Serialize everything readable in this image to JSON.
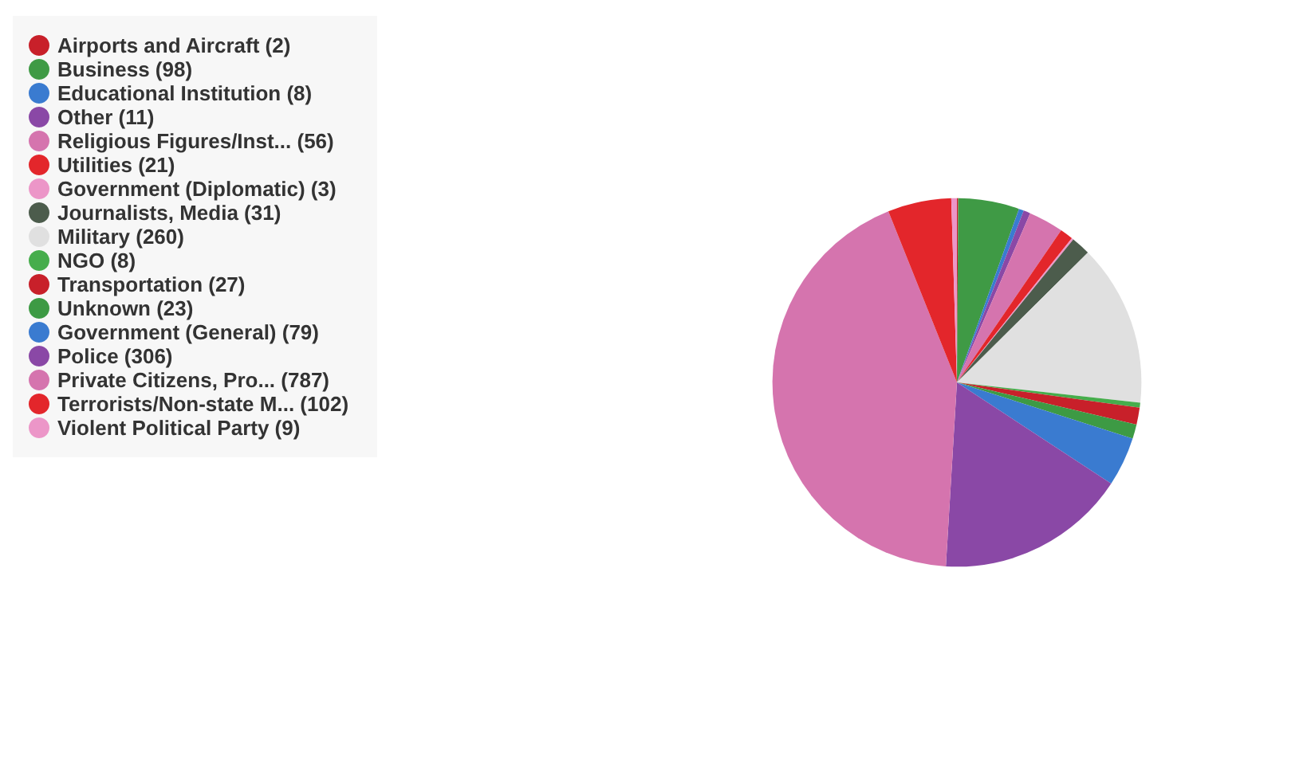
{
  "chart_data": {
    "type": "pie",
    "categories": [
      "Airports and Aircraft (2)",
      "Business (98)",
      "Educational Institution (8)",
      "Other (11)",
      "Religious Figures/Inst... (56)",
      "Utilities (21)",
      "Government (Diplomatic) (3)",
      "Journalists, Media (31)",
      "Military (260)",
      "NGO (8)",
      "Transportation (27)",
      "Unknown (23)",
      "Government (General) (79)",
      "Police (306)",
      "Private Citizens, Pro... (787)",
      "Terrorists/Non-state M... (102)",
      "Violent Political Party (9)"
    ],
    "values": [
      2,
      98,
      8,
      11,
      56,
      21,
      3,
      31,
      260,
      8,
      27,
      23,
      79,
      306,
      787,
      102,
      9
    ],
    "colors": [
      "#c8202a",
      "#3f9a45",
      "#3a7bd0",
      "#8a48a6",
      "#d574ae",
      "#e3262b",
      "#ec96c8",
      "#4c5c4c",
      "#e0e0e0",
      "#46ad4c",
      "#c8202a",
      "#3d9a44",
      "#3a7bd0",
      "#8a48a6",
      "#d574ae",
      "#e3262b",
      "#ec96c8"
    ],
    "legend": "left"
  }
}
